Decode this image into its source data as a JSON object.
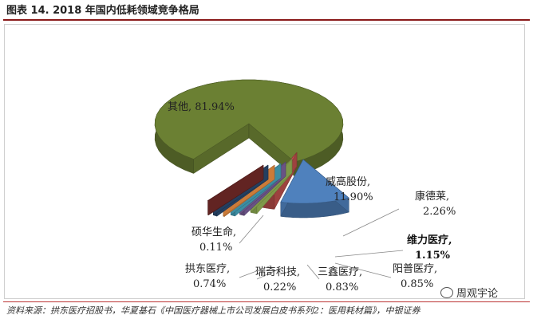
{
  "title": "图表 14. 2018 年国内低耗领域竞争格局",
  "source": "资料来源：拱东医疗招股书，华夏基石《中国医疗器械上市公司发展白皮书系列2：医用耗材篇》，中银证券",
  "watermark": "周观宇论",
  "chart_data": {
    "type": "pie",
    "style": "3d-exploded",
    "labels": [
      "其他",
      "威高股份",
      "康德莱",
      "维力医疗",
      "阳普医疗",
      "三鑫医疗",
      "瑞奇科技",
      "拱东医疗",
      "硕华生命"
    ],
    "values": [
      81.94,
      11.9,
      2.26,
      1.15,
      0.85,
      0.83,
      0.22,
      0.74,
      0.11
    ],
    "value_labels": [
      "81.94%",
      "11.90%",
      "2.26%",
      "1.15%",
      "0.85%",
      "0.83%",
      "0.22%",
      "0.74%",
      "0.11%"
    ],
    "colors": [
      "#6b8033",
      "#4f81bd",
      "#c0504d",
      "#9bbb59",
      "#8064a2",
      "#4bacc6",
      "#f79646",
      "#2c4d75",
      "#772c2a"
    ],
    "label_bold": [
      false,
      false,
      false,
      true,
      false,
      false,
      false,
      false,
      false
    ]
  }
}
